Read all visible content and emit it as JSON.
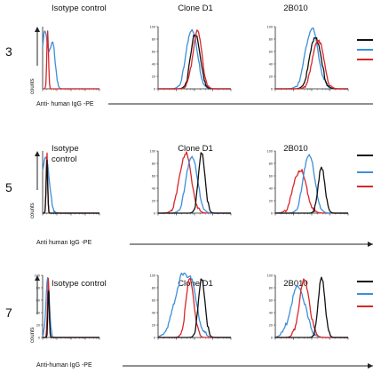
{
  "colors": {
    "black": "#111111",
    "blue": "#3d8fd8",
    "red": "#d9262b",
    "axis": "#222222"
  },
  "x_axis_label_variants": [
    "Anti- human IgG -PE",
    "Anti human IgG -PE",
    "Anti-human IgG -PE"
  ],
  "counts_label": "counts",
  "chart_data": [
    {
      "type": "line",
      "row_label": "3",
      "xlabel": "Anti- human IgG -PE",
      "ylabel": "counts",
      "xscale": "log",
      "panels": [
        {
          "title": "Isotype control",
          "show_yticks": false,
          "series": [
            {
              "color": "blue",
              "peak_log": 0.15,
              "width": 0.22,
              "height": 0.9,
              "shoulder": 0.55,
              "shoulder_peak": 0.72
            },
            {
              "color": "red",
              "peak_log": 0.35,
              "width": 0.06,
              "height": 0.95
            }
          ]
        },
        {
          "title": "Clone D1",
          "show_yticks": true,
          "yticks": [
            "100",
            "80",
            "60",
            "40",
            "20",
            "0"
          ],
          "series": [
            {
              "color": "blue",
              "peak_log": 1.85,
              "width": 0.3,
              "height": 0.97
            },
            {
              "color": "black",
              "peak_log": 2.05,
              "width": 0.25,
              "height": 0.9
            },
            {
              "color": "red",
              "peak_log": 2.15,
              "width": 0.25,
              "height": 0.92
            }
          ]
        },
        {
          "title": "2B010",
          "show_yticks": true,
          "yticks": [
            "100",
            "80",
            "60",
            "40",
            "20",
            "0"
          ],
          "series": [
            {
              "color": "blue",
              "peak_log": 2.0,
              "width": 0.35,
              "height": 0.97
            },
            {
              "color": "black",
              "peak_log": 2.2,
              "width": 0.3,
              "height": 0.85
            },
            {
              "color": "red",
              "peak_log": 2.35,
              "width": 0.3,
              "height": 0.8
            }
          ]
        }
      ]
    },
    {
      "type": "line",
      "row_label": "5",
      "xlabel": "Anti human IgG -PE",
      "ylabel": "counts",
      "xscale": "log",
      "panels": [
        {
          "title": "Isotype\ncontrol",
          "show_yticks": false,
          "series": [
            {
              "color": "blue",
              "peak_log": 0.2,
              "width": 0.25,
              "height": 0.92
            },
            {
              "color": "red",
              "peak_log": 0.3,
              "width": 0.05,
              "height": 0.97
            },
            {
              "color": "black",
              "peak_log": 0.3,
              "width": 0.05,
              "height": 0.85
            }
          ]
        },
        {
          "title": "Clone D1",
          "show_yticks": true,
          "yticks": [
            "100",
            "80",
            "60",
            "40",
            "20",
            "0"
          ],
          "series": [
            {
              "color": "red",
              "peak_log": 1.5,
              "width": 0.32,
              "height": 0.96
            },
            {
              "color": "blue",
              "peak_log": 1.85,
              "width": 0.3,
              "height": 0.93
            },
            {
              "color": "black",
              "peak_log": 2.4,
              "width": 0.18,
              "height": 0.98
            }
          ]
        },
        {
          "title": "2B010",
          "show_yticks": true,
          "yticks": [
            "100",
            "80",
            "60",
            "40",
            "20",
            "0"
          ],
          "series": [
            {
              "color": "red",
              "peak_log": 1.35,
              "width": 0.35,
              "height": 0.7
            },
            {
              "color": "blue",
              "peak_log": 1.85,
              "width": 0.3,
              "height": 0.96
            },
            {
              "color": "black",
              "peak_log": 2.55,
              "width": 0.18,
              "height": 0.75
            }
          ]
        }
      ]
    },
    {
      "type": "line",
      "row_label": "7",
      "xlabel": "Anti-human IgG -PE",
      "ylabel": "counts",
      "xscale": "log",
      "panels": [
        {
          "title": "Isotype control",
          "show_yticks": true,
          "yticks": [
            "100",
            "80",
            "60",
            "40",
            "20",
            "0"
          ],
          "series": [
            {
              "color": "blue",
              "peak_log": 0.35,
              "width": 0.12,
              "height": 0.98
            },
            {
              "color": "red",
              "peak_log": 0.4,
              "width": 0.06,
              "height": 0.95
            },
            {
              "color": "black",
              "peak_log": 0.42,
              "width": 0.05,
              "height": 0.85
            }
          ]
        },
        {
          "title": "Clone D1",
          "show_yticks": true,
          "yticks": [
            "100",
            "80",
            "60",
            "40",
            "20",
            "0"
          ],
          "series": [
            {
              "color": "blue",
              "peak_log": 1.3,
              "width": 0.45,
              "height": 0.82,
              "shoulder": 0.5,
              "shoulder_peak": 0.55
            },
            {
              "color": "red",
              "peak_log": 1.75,
              "width": 0.22,
              "height": 0.93
            },
            {
              "color": "black",
              "peak_log": 2.4,
              "width": 0.18,
              "height": 0.95
            }
          ]
        },
        {
          "title": "2B010",
          "show_yticks": true,
          "yticks": [
            "100",
            "80",
            "60",
            "40",
            "20",
            "0"
          ],
          "series": [
            {
              "color": "blue",
              "peak_log": 1.25,
              "width": 0.4,
              "height": 0.82
            },
            {
              "color": "red",
              "peak_log": 1.6,
              "width": 0.28,
              "height": 0.92
            },
            {
              "color": "black",
              "peak_log": 2.55,
              "width": 0.18,
              "height": 0.98
            }
          ]
        }
      ]
    }
  ]
}
